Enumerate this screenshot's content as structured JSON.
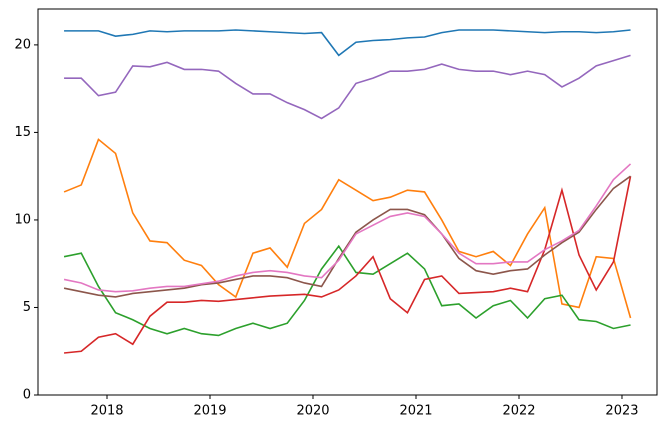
{
  "chart_data": {
    "type": "line",
    "x": [
      2017.583,
      2017.75,
      2017.917,
      2018.083,
      2018.25,
      2018.417,
      2018.583,
      2018.75,
      2018.917,
      2019.083,
      2019.25,
      2019.417,
      2019.583,
      2019.75,
      2019.917,
      2020.083,
      2020.25,
      2020.417,
      2020.583,
      2020.75,
      2020.917,
      2021.083,
      2021.25,
      2021.417,
      2021.583,
      2021.75,
      2021.917,
      2022.083,
      2022.25,
      2022.417,
      2022.583,
      2022.75,
      2022.917,
      2023.083
    ],
    "series": [
      {
        "color": "#1f77b4",
        "values": [
          20.8,
          20.8,
          20.8,
          20.5,
          20.6,
          20.8,
          20.75,
          20.8,
          20.8,
          20.8,
          20.85,
          20.8,
          20.75,
          20.7,
          20.65,
          20.7,
          19.4,
          20.15,
          20.25,
          20.3,
          20.4,
          20.45,
          20.7,
          20.85,
          20.85,
          20.85,
          20.8,
          20.75,
          20.7,
          20.75,
          20.75,
          20.7,
          20.75,
          20.85
        ]
      },
      {
        "color": "#ff7f0e",
        "values": [
          11.6,
          12.0,
          14.6,
          13.8,
          10.4,
          8.8,
          8.7,
          7.7,
          7.4,
          6.3,
          5.6,
          8.1,
          8.4,
          7.3,
          9.8,
          10.6,
          12.3,
          11.7,
          11.1,
          11.3,
          11.7,
          11.6,
          10.0,
          8.2,
          7.9,
          8.2,
          7.4,
          9.2,
          10.7,
          5.2,
          5.0,
          7.9,
          7.8,
          4.4
        ]
      },
      {
        "color": "#2ca02c",
        "values": [
          7.9,
          8.1,
          6.2,
          4.7,
          4.3,
          3.8,
          3.5,
          3.8,
          3.5,
          3.4,
          3.8,
          4.1,
          3.8,
          4.1,
          5.4,
          7.2,
          8.5,
          7.0,
          6.9,
          7.5,
          8.1,
          7.2,
          5.1,
          5.2,
          4.4,
          5.1,
          5.4,
          4.4,
          5.5,
          5.7,
          4.3,
          4.2,
          3.8,
          4.0
        ]
      },
      {
        "color": "#d62728",
        "values": [
          2.4,
          2.5,
          3.3,
          3.5,
          2.9,
          4.5,
          5.3,
          5.3,
          5.4,
          5.35,
          5.45,
          5.55,
          5.65,
          5.7,
          5.75,
          5.6,
          6.0,
          6.8,
          7.9,
          5.5,
          4.7,
          6.6,
          6.8,
          5.8,
          5.85,
          5.9,
          6.1,
          5.9,
          8.3,
          11.7,
          8.0,
          6.0,
          7.6,
          12.5
        ]
      },
      {
        "color": "#9467bd",
        "values": [
          18.1,
          18.1,
          17.1,
          17.3,
          18.8,
          18.75,
          19.0,
          18.6,
          18.6,
          18.5,
          17.8,
          17.2,
          17.2,
          16.7,
          16.3,
          15.8,
          16.4,
          17.8,
          18.1,
          18.5,
          18.5,
          18.6,
          18.9,
          18.6,
          18.5,
          18.5,
          18.3,
          18.5,
          18.3,
          17.6,
          18.1,
          18.8,
          19.1,
          19.4
        ]
      },
      {
        "color": "#8c564b",
        "values": [
          6.1,
          5.9,
          5.7,
          5.6,
          5.8,
          5.9,
          6.0,
          6.1,
          6.3,
          6.4,
          6.6,
          6.8,
          6.8,
          6.7,
          6.4,
          6.2,
          7.8,
          9.3,
          10.0,
          10.6,
          10.6,
          10.3,
          9.2,
          7.8,
          7.1,
          6.9,
          7.1,
          7.2,
          8.0,
          8.7,
          9.3,
          10.6,
          11.8,
          12.5
        ]
      },
      {
        "color": "#e377c2",
        "values": [
          6.6,
          6.4,
          6.0,
          5.9,
          5.95,
          6.1,
          6.2,
          6.2,
          6.35,
          6.5,
          6.8,
          7.0,
          7.1,
          7.0,
          6.8,
          6.7,
          7.7,
          9.2,
          9.7,
          10.2,
          10.4,
          10.2,
          9.2,
          8.1,
          7.5,
          7.5,
          7.6,
          7.6,
          8.3,
          8.8,
          9.4,
          10.8,
          12.3,
          13.2
        ]
      }
    ],
    "xlim": [
      2017.33,
      2023.34
    ],
    "xticks": [
      2018,
      2019,
      2020,
      2021,
      2022,
      2023
    ],
    "ylim": [
      0,
      22.05
    ],
    "yticks": [
      0,
      5,
      10,
      15,
      20
    ]
  }
}
